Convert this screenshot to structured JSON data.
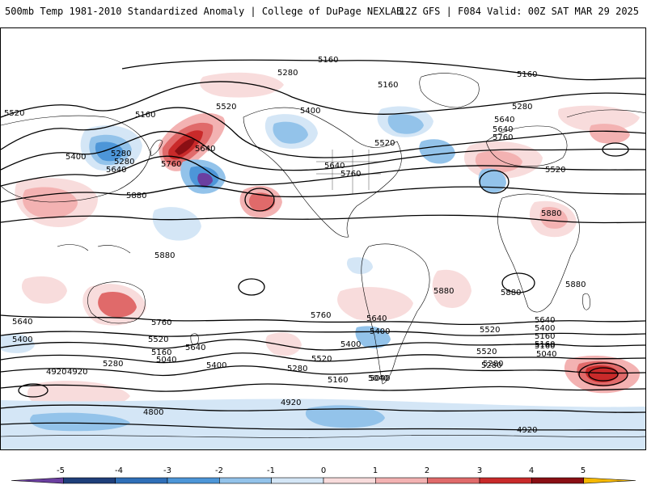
{
  "header": {
    "title_left": "500mb Temp 1981-2010 Standardized Anomaly | College of DuPage NEXLAB",
    "title_right": "12Z GFS | F084 Valid: 00Z SAT MAR 29 2025"
  },
  "colorbar": {
    "ticks": [
      "-5",
      "-4",
      "-3",
      "-2",
      "-1",
      "0",
      "1",
      "2",
      "3",
      "4",
      "5"
    ],
    "colors": [
      "#6b3fa0",
      "#1f3f7a",
      "#2f6fb8",
      "#4d96d8",
      "#93c3ea",
      "#d4e6f6",
      "#f8dcdc",
      "#f3b2b2",
      "#e06a6a",
      "#c92a2a",
      "#8a0f14",
      "#f5b800"
    ]
  },
  "contour_labels": [
    "5160",
    "5280",
    "5160",
    "5160",
    "5520",
    "5280",
    "5520",
    "5400",
    "5160",
    "5640",
    "5280",
    "5400",
    "5640",
    "5280",
    "5640",
    "5760",
    "5760",
    "5640",
    "5520",
    "5640",
    "5760",
    "5520",
    "5880",
    "5880",
    "5880",
    "5880",
    "5880",
    "5880",
    "5640",
    "5400",
    "5520",
    "5160",
    "5040",
    "5280",
    "4920",
    "5760",
    "5640",
    "5400",
    "5520",
    "5280",
    "5160",
    "5040",
    "4920",
    "4800",
    "5640",
    "5400",
    "5760",
    "5520",
    "5280",
    "5160",
    "5040",
    "5400",
    "5160",
    "4920",
    "5640",
    "5520",
    "5400",
    "5040",
    "5280",
    "4920",
    "5160"
  ],
  "anomaly_palette": {
    "warm_light": "#f8dcdc",
    "warm_mid": "#f3b2b2",
    "warm_strong": "#e06a6a",
    "warm_deep": "#c92a2a",
    "warm_extreme": "#8a0f14",
    "cool_light": "#d4e6f6",
    "cool_mid": "#93c3ea",
    "cool_strong": "#4d96d8",
    "cool_deep": "#2f6fb8",
    "cool_extreme": "#6b3fa0"
  }
}
